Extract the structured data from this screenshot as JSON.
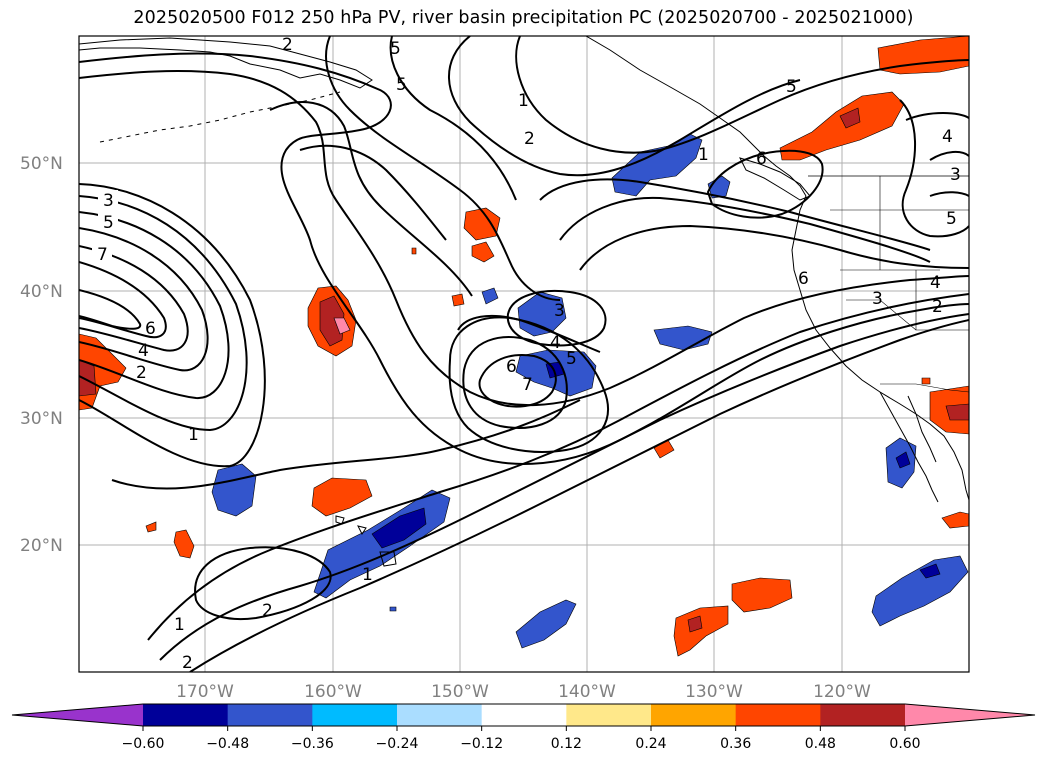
{
  "title": "2025020500 F012 250 hPa PV, river basin precipitation PC (2025020700 - 2025021000)",
  "lat_labels": [
    "50°N",
    "40°N",
    "30°N",
    "20°N"
  ],
  "lon_labels": [
    "170°W",
    "160°W",
    "150°W",
    "140°W",
    "130°W",
    "120°W"
  ],
  "colorbar": {
    "ticks": [
      "−0.60",
      "−0.48",
      "−0.36",
      "−0.24",
      "−0.12",
      "0.12",
      "0.24",
      "0.36",
      "0.48",
      "0.60"
    ],
    "colors": [
      "#9933cc",
      "#000099",
      "#3355cc",
      "#00bbff",
      "#aaddff",
      "#ffffff",
      "#ffe88a",
      "#ffa500",
      "#ff4500",
      "#b22222",
      "#ff88aa"
    ]
  },
  "contour_labels": [
    "1",
    "2",
    "3",
    "4",
    "5",
    "6",
    "7"
  ],
  "colors": {
    "neg_dark": "#000099",
    "neg_mid": "#3355cc",
    "neg_light": "#00bbff",
    "pos_light": "#ffe88a",
    "pos_mid": "#ffa500",
    "pos_red": "#ff4500",
    "pos_dark": "#b22222",
    "pos_pink": "#ff88aa"
  }
}
